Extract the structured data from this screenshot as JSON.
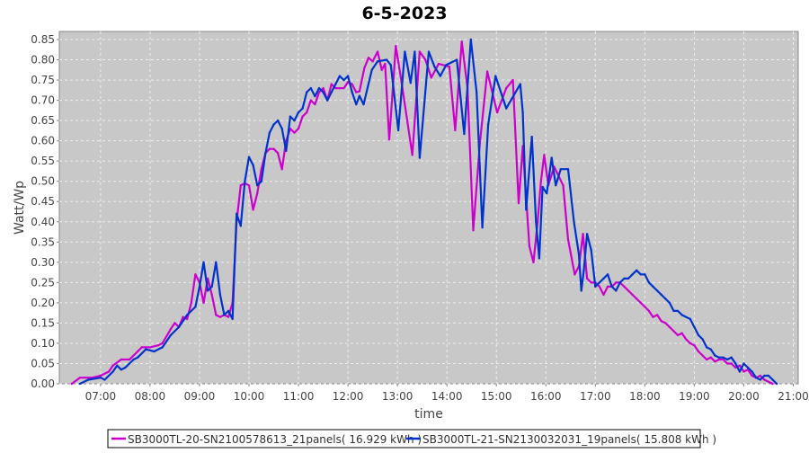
{
  "chart_data": {
    "type": "line",
    "title": "6-5-2023",
    "xlabel": "time",
    "ylabel": "Watt/Wp",
    "xlim": [
      "06:10",
      "21:06"
    ],
    "ylim": [
      0,
      0.87
    ],
    "x_ticks": [
      "07:00",
      "08:00",
      "09:00",
      "10:00",
      "11:00",
      "12:00",
      "13:00",
      "14:00",
      "15:00",
      "16:00",
      "17:00",
      "18:00",
      "19:00",
      "20:00",
      "21:00"
    ],
    "y_ticks": [
      "0.00",
      "0.05",
      "0.10",
      "0.15",
      "0.20",
      "0.25",
      "0.30",
      "0.35",
      "0.40",
      "0.45",
      "0.50",
      "0.55",
      "0.60",
      "0.65",
      "0.70",
      "0.75",
      "0.80",
      "0.85"
    ],
    "grid": true,
    "legend_position": "bottom",
    "background": "#c8c8c8",
    "series": [
      {
        "name": "SB3000TL-20-SN2100578613_21panels( 16.929 kWh )",
        "color": "#cc00cc",
        "points": [
          [
            "06:25",
            0.0
          ],
          [
            "06:35",
            0.015
          ],
          [
            "06:50",
            0.015
          ],
          [
            "07:00",
            0.02
          ],
          [
            "07:10",
            0.03
          ],
          [
            "07:15",
            0.045
          ],
          [
            "07:25",
            0.06
          ],
          [
            "07:35",
            0.06
          ],
          [
            "07:45",
            0.08
          ],
          [
            "07:50",
            0.09
          ],
          [
            "08:00",
            0.09
          ],
          [
            "08:10",
            0.095
          ],
          [
            "08:15",
            0.1
          ],
          [
            "08:25",
            0.135
          ],
          [
            "08:30",
            0.15
          ],
          [
            "08:35",
            0.14
          ],
          [
            "08:40",
            0.165
          ],
          [
            "08:45",
            0.16
          ],
          [
            "08:50",
            0.2
          ],
          [
            "08:55",
            0.27
          ],
          [
            "09:00",
            0.25
          ],
          [
            "09:05",
            0.2
          ],
          [
            "09:10",
            0.26
          ],
          [
            "09:15",
            0.22
          ],
          [
            "09:20",
            0.17
          ],
          [
            "09:25",
            0.165
          ],
          [
            "09:30",
            0.17
          ],
          [
            "09:35",
            0.165
          ],
          [
            "09:40",
            0.2
          ],
          [
            "09:45",
            0.4
          ],
          [
            "09:50",
            0.49
          ],
          [
            "09:55",
            0.495
          ],
          [
            "10:00",
            0.49
          ],
          [
            "10:05",
            0.43
          ],
          [
            "10:10",
            0.47
          ],
          [
            "10:15",
            0.53
          ],
          [
            "10:20",
            0.57
          ],
          [
            "10:25",
            0.58
          ],
          [
            "10:30",
            0.58
          ],
          [
            "10:35",
            0.57
          ],
          [
            "10:40",
            0.53
          ],
          [
            "10:45",
            0.6
          ],
          [
            "10:50",
            0.63
          ],
          [
            "10:55",
            0.62
          ],
          [
            "11:00",
            0.63
          ],
          [
            "11:05",
            0.66
          ],
          [
            "11:10",
            0.67
          ],
          [
            "11:15",
            0.7
          ],
          [
            "11:20",
            0.69
          ],
          [
            "11:25",
            0.72
          ],
          [
            "11:30",
            0.73
          ],
          [
            "11:35",
            0.7
          ],
          [
            "11:40",
            0.74
          ],
          [
            "11:45",
            0.73
          ],
          [
            "11:50",
            0.73
          ],
          [
            "11:55",
            0.73
          ],
          [
            "12:00",
            0.745
          ],
          [
            "12:05",
            0.74
          ],
          [
            "12:10",
            0.72
          ],
          [
            "12:14",
            0.722
          ],
          [
            "12:20",
            0.78
          ],
          [
            "12:25",
            0.805
          ],
          [
            "12:30",
            0.796
          ],
          [
            "12:36",
            0.82
          ],
          [
            "12:41",
            0.775
          ],
          [
            "12:45",
            0.79
          ],
          [
            "12:50",
            0.603
          ],
          [
            "12:58",
            0.834
          ],
          [
            "13:05",
            0.745
          ],
          [
            "13:18",
            0.565
          ],
          [
            "13:27",
            0.82
          ],
          [
            "13:34",
            0.8
          ],
          [
            "13:41",
            0.756
          ],
          [
            "13:50",
            0.79
          ],
          [
            "14:03",
            0.783
          ],
          [
            "14:10",
            0.626
          ],
          [
            "14:18",
            0.845
          ],
          [
            "14:25",
            0.73
          ],
          [
            "14:32",
            0.379
          ],
          [
            "14:40",
            0.595
          ],
          [
            "14:49",
            0.771
          ],
          [
            "15:01",
            0.67
          ],
          [
            "15:12",
            0.73
          ],
          [
            "15:20",
            0.75
          ],
          [
            "15:27",
            0.446
          ],
          [
            "15:32",
            0.587
          ],
          [
            "15:40",
            0.34
          ],
          [
            "15:45",
            0.3
          ],
          [
            "15:50",
            0.4
          ],
          [
            "15:54",
            0.5
          ],
          [
            "15:58",
            0.565
          ],
          [
            "16:03",
            0.49
          ],
          [
            "16:10",
            0.536
          ],
          [
            "16:21",
            0.49
          ],
          [
            "16:27",
            0.356
          ],
          [
            "16:35",
            0.27
          ],
          [
            "16:40",
            0.29
          ],
          [
            "16:45",
            0.37
          ],
          [
            "16:50",
            0.26
          ],
          [
            "16:55",
            0.25
          ],
          [
            "17:00",
            0.25
          ],
          [
            "17:05",
            0.24
          ],
          [
            "17:10",
            0.22
          ],
          [
            "17:15",
            0.24
          ],
          [
            "17:20",
            0.24
          ],
          [
            "17:25",
            0.25
          ],
          [
            "17:30",
            0.25
          ],
          [
            "17:35",
            0.24
          ],
          [
            "17:40",
            0.23
          ],
          [
            "17:45",
            0.22
          ],
          [
            "17:50",
            0.21
          ],
          [
            "17:55",
            0.2
          ],
          [
            "18:00",
            0.19
          ],
          [
            "18:05",
            0.18
          ],
          [
            "18:10",
            0.165
          ],
          [
            "18:15",
            0.17
          ],
          [
            "18:20",
            0.155
          ],
          [
            "18:25",
            0.15
          ],
          [
            "18:30",
            0.14
          ],
          [
            "18:35",
            0.13
          ],
          [
            "18:40",
            0.12
          ],
          [
            "18:45",
            0.125
          ],
          [
            "18:50",
            0.11
          ],
          [
            "18:55",
            0.1
          ],
          [
            "19:00",
            0.095
          ],
          [
            "19:05",
            0.08
          ],
          [
            "19:10",
            0.07
          ],
          [
            "19:15",
            0.06
          ],
          [
            "19:20",
            0.065
          ],
          [
            "19:25",
            0.055
          ],
          [
            "19:30",
            0.06
          ],
          [
            "19:35",
            0.06
          ],
          [
            "19:40",
            0.05
          ],
          [
            "19:45",
            0.05
          ],
          [
            "19:50",
            0.04
          ],
          [
            "19:55",
            0.045
          ],
          [
            "20:00",
            0.03
          ],
          [
            "20:05",
            0.035
          ],
          [
            "20:10",
            0.02
          ],
          [
            "20:15",
            0.015
          ],
          [
            "20:20",
            0.02
          ],
          [
            "20:25",
            0.01
          ],
          [
            "20:30",
            0.005
          ],
          [
            "20:35",
            0.0
          ]
        ]
      },
      {
        "name": "SB3000TL-21-SN2130032031_19panels( 15.808 kWh )",
        "color": "#0033cc",
        "points": [
          [
            "06:35",
            0.0
          ],
          [
            "06:45",
            0.01
          ],
          [
            "07:00",
            0.015
          ],
          [
            "07:05",
            0.01
          ],
          [
            "07:15",
            0.03
          ],
          [
            "07:20",
            0.045
          ],
          [
            "07:25",
            0.035
          ],
          [
            "07:30",
            0.04
          ],
          [
            "07:40",
            0.06
          ],
          [
            "07:45",
            0.065
          ],
          [
            "07:55",
            0.085
          ],
          [
            "08:05",
            0.08
          ],
          [
            "08:15",
            0.09
          ],
          [
            "08:25",
            0.12
          ],
          [
            "08:35",
            0.14
          ],
          [
            "08:45",
            0.17
          ],
          [
            "08:55",
            0.19
          ],
          [
            "09:00",
            0.24
          ],
          [
            "09:05",
            0.3
          ],
          [
            "09:10",
            0.23
          ],
          [
            "09:15",
            0.24
          ],
          [
            "09:20",
            0.3
          ],
          [
            "09:25",
            0.22
          ],
          [
            "09:30",
            0.17
          ],
          [
            "09:35",
            0.18
          ],
          [
            "09:40",
            0.16
          ],
          [
            "09:45",
            0.42
          ],
          [
            "09:50",
            0.39
          ],
          [
            "09:55",
            0.5
          ],
          [
            "10:00",
            0.56
          ],
          [
            "10:05",
            0.54
          ],
          [
            "10:10",
            0.49
          ],
          [
            "10:15",
            0.5
          ],
          [
            "10:20",
            0.57
          ],
          [
            "10:25",
            0.62
          ],
          [
            "10:30",
            0.64
          ],
          [
            "10:35",
            0.65
          ],
          [
            "10:40",
            0.63
          ],
          [
            "10:45",
            0.575
          ],
          [
            "10:50",
            0.66
          ],
          [
            "10:55",
            0.65
          ],
          [
            "11:00",
            0.67
          ],
          [
            "11:05",
            0.68
          ],
          [
            "11:10",
            0.72
          ],
          [
            "11:15",
            0.73
          ],
          [
            "11:20",
            0.71
          ],
          [
            "11:25",
            0.73
          ],
          [
            "11:30",
            0.72
          ],
          [
            "11:35",
            0.7
          ],
          [
            "11:40",
            0.72
          ],
          [
            "11:45",
            0.74
          ],
          [
            "11:50",
            0.76
          ],
          [
            "11:55",
            0.75
          ],
          [
            "12:00",
            0.76
          ],
          [
            "12:05",
            0.72
          ],
          [
            "12:10",
            0.69
          ],
          [
            "12:14",
            0.711
          ],
          [
            "12:19",
            0.69
          ],
          [
            "12:29",
            0.775
          ],
          [
            "12:36",
            0.796
          ],
          [
            "12:47",
            0.8
          ],
          [
            "12:52",
            0.787
          ],
          [
            "13:01",
            0.626
          ],
          [
            "13:09",
            0.82
          ],
          [
            "13:16",
            0.743
          ],
          [
            "13:21",
            0.82
          ],
          [
            "13:27",
            0.558
          ],
          [
            "13:38",
            0.82
          ],
          [
            "13:45",
            0.783
          ],
          [
            "13:52",
            0.76
          ],
          [
            "13:59",
            0.787
          ],
          [
            "14:12",
            0.8
          ],
          [
            "14:21",
            0.617
          ],
          [
            "14:29",
            0.85
          ],
          [
            "14:36",
            0.72
          ],
          [
            "14:43",
            0.386
          ],
          [
            "14:50",
            0.64
          ],
          [
            "14:59",
            0.76
          ],
          [
            "15:12",
            0.68
          ],
          [
            "15:29",
            0.74
          ],
          [
            "15:32",
            0.67
          ],
          [
            "15:36",
            0.43
          ],
          [
            "15:43",
            0.61
          ],
          [
            "15:48",
            0.4
          ],
          [
            "15:52",
            0.31
          ],
          [
            "15:56",
            0.486
          ],
          [
            "16:01",
            0.47
          ],
          [
            "16:07",
            0.558
          ],
          [
            "16:12",
            0.49
          ],
          [
            "16:18",
            0.53
          ],
          [
            "16:27",
            0.53
          ],
          [
            "16:34",
            0.4
          ],
          [
            "16:40",
            0.32
          ],
          [
            "16:43",
            0.23
          ],
          [
            "16:46",
            0.28
          ],
          [
            "16:50",
            0.37
          ],
          [
            "16:55",
            0.33
          ],
          [
            "17:00",
            0.24
          ],
          [
            "17:05",
            0.25
          ],
          [
            "17:10",
            0.26
          ],
          [
            "17:15",
            0.27
          ],
          [
            "17:20",
            0.24
          ],
          [
            "17:25",
            0.23
          ],
          [
            "17:30",
            0.25
          ],
          [
            "17:35",
            0.26
          ],
          [
            "17:40",
            0.26
          ],
          [
            "17:45",
            0.27
          ],
          [
            "17:50",
            0.28
          ],
          [
            "17:55",
            0.27
          ],
          [
            "18:00",
            0.27
          ],
          [
            "18:05",
            0.25
          ],
          [
            "18:10",
            0.24
          ],
          [
            "18:15",
            0.23
          ],
          [
            "18:20",
            0.22
          ],
          [
            "18:25",
            0.21
          ],
          [
            "18:30",
            0.2
          ],
          [
            "18:35",
            0.18
          ],
          [
            "18:40",
            0.18
          ],
          [
            "18:45",
            0.17
          ],
          [
            "18:50",
            0.165
          ],
          [
            "18:55",
            0.16
          ],
          [
            "19:00",
            0.14
          ],
          [
            "19:05",
            0.12
          ],
          [
            "19:10",
            0.11
          ],
          [
            "19:15",
            0.09
          ],
          [
            "19:20",
            0.085
          ],
          [
            "19:25",
            0.07
          ],
          [
            "19:30",
            0.065
          ],
          [
            "19:35",
            0.065
          ],
          [
            "19:40",
            0.06
          ],
          [
            "19:45",
            0.065
          ],
          [
            "19:50",
            0.05
          ],
          [
            "19:55",
            0.03
          ],
          [
            "20:00",
            0.05
          ],
          [
            "20:05",
            0.04
          ],
          [
            "20:10",
            0.03
          ],
          [
            "20:15",
            0.015
          ],
          [
            "20:20",
            0.01
          ],
          [
            "20:25",
            0.02
          ],
          [
            "20:30",
            0.02
          ],
          [
            "20:35",
            0.01
          ],
          [
            "20:40",
            0.0
          ]
        ]
      }
    ]
  }
}
